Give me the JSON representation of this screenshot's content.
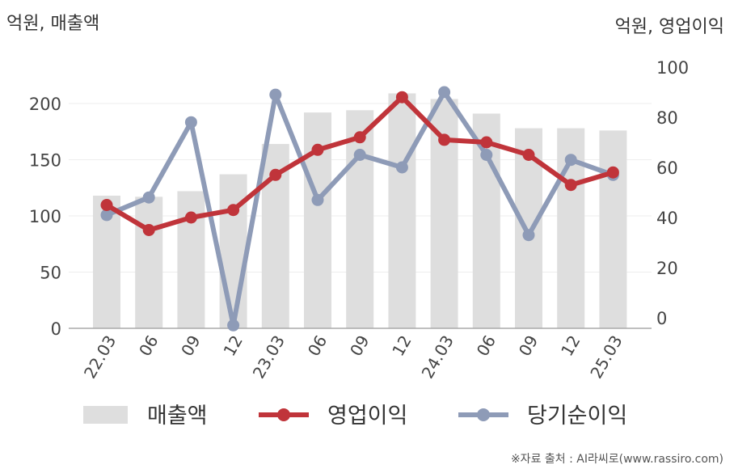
{
  "chart_data": {
    "type": "bar+line",
    "categories": [
      "22.03",
      "06",
      "09",
      "12",
      "23.03",
      "06",
      "09",
      "12",
      "24.03",
      "06",
      "09",
      "12",
      "25.03"
    ],
    "left_axis": {
      "unit_label": "억원, 매출액",
      "ylim": [
        0,
        230
      ],
      "ticks": [
        0,
        50,
        100,
        150,
        200
      ]
    },
    "right_axis": {
      "unit_label": "억원, 영업이익",
      "ylim": [
        -4,
        101
      ],
      "ticks": [
        0,
        20,
        40,
        60,
        80,
        100
      ]
    },
    "series": [
      {
        "name": "매출액",
        "kind": "bar",
        "axis": "left",
        "color": "#dedede",
        "values": [
          118,
          117,
          122,
          137,
          164,
          192,
          194,
          209,
          204,
          191,
          178,
          178,
          176
        ]
      },
      {
        "name": "영업이익",
        "kind": "line",
        "axis": "right",
        "color": "#c0343a",
        "values": [
          45,
          35,
          40,
          43,
          57,
          67,
          72,
          88,
          71,
          70,
          65,
          53,
          58
        ]
      },
      {
        "name": "당기순이익",
        "kind": "line",
        "axis": "right",
        "color": "#8e9bb7",
        "values": [
          41,
          48,
          78,
          -3,
          89,
          47,
          65,
          60,
          90,
          65,
          33,
          63,
          57
        ]
      }
    ],
    "grid": true,
    "legend": "bottom"
  },
  "source_text": "※자료 출처 : AI라씨로(www.rassiro.com)"
}
